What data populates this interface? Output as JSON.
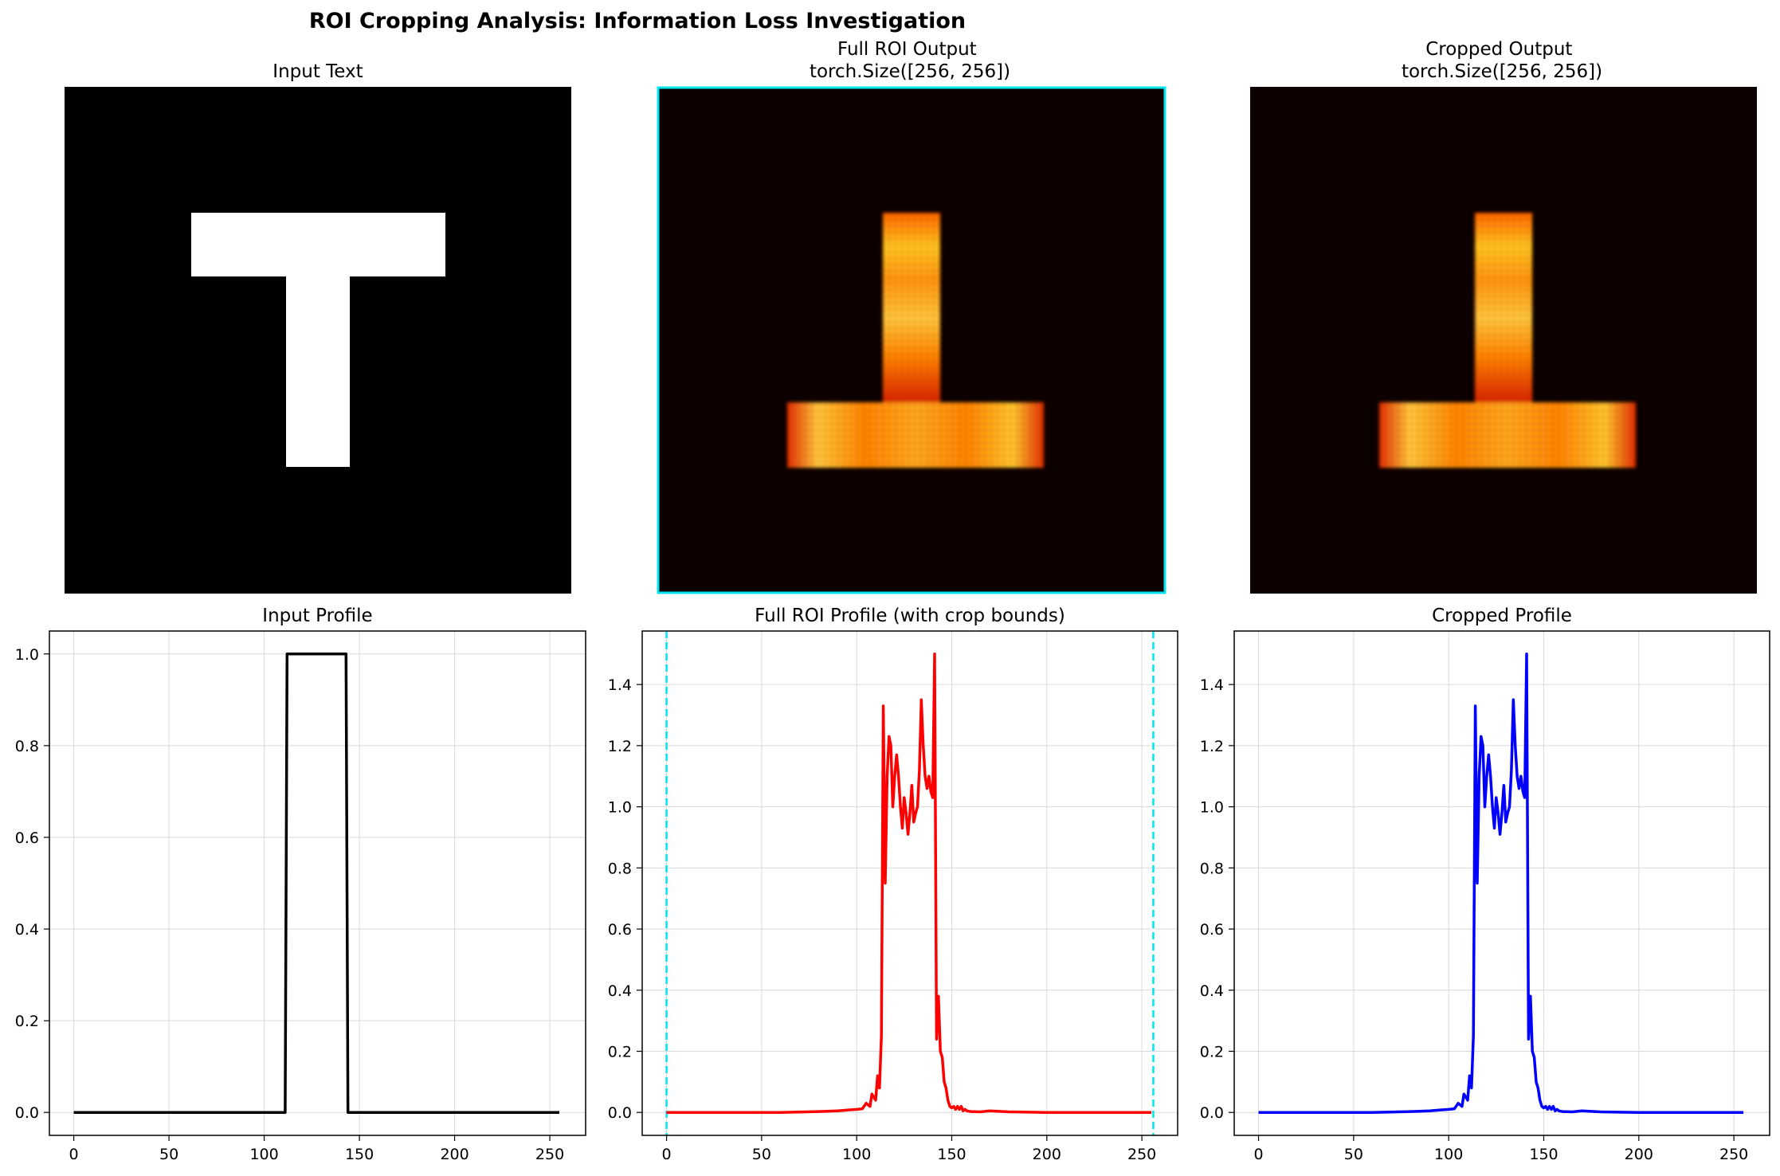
{
  "figure": {
    "title": "ROI Cropping Analysis: Information Loss Investigation"
  },
  "colors": {
    "input_line": "#000000",
    "full_line": "#ff0000",
    "crop_line": "#0000ff",
    "crop_bounds": "#00e5ee",
    "heat_background": "#0d0000",
    "grid": "#d9d9d9"
  },
  "images": [
    {
      "title": "Input Text",
      "colormap": "gray",
      "letter": "T"
    },
    {
      "title": "Full ROI Output\ntorch.Size([256, 256])",
      "colormap": "hot",
      "letter": "inverted-T",
      "frame": "cyan"
    },
    {
      "title": "Cropped Output\ntorch.Size([256, 256])",
      "colormap": "hot",
      "letter": "inverted-T"
    }
  ],
  "chart_data": [
    {
      "type": "line",
      "title": "Input Profile",
      "xlim": [
        -12.8,
        268.8
      ],
      "ylim": [
        -0.05,
        1.05
      ],
      "xticks": [
        0,
        50,
        100,
        150,
        200,
        250
      ],
      "yticks": [
        0.0,
        0.2,
        0.4,
        0.6,
        0.8,
        1.0
      ],
      "ytick_labels": [
        "0.0",
        "0.2",
        "0.4",
        "0.6",
        "0.8",
        "1.0"
      ],
      "grid": true,
      "series": [
        {
          "color": "black",
          "x": [
            0,
            111,
            112,
            143,
            144,
            255
          ],
          "y": [
            0,
            0,
            1,
            1,
            0,
            0
          ]
        }
      ]
    },
    {
      "type": "line",
      "title": "Full ROI Profile (with crop bounds)",
      "xlim": [
        -12.8,
        268.8
      ],
      "ylim": [
        -0.075,
        1.575
      ],
      "xticks": [
        0,
        50,
        100,
        150,
        200,
        250
      ],
      "yticks": [
        0.0,
        0.2,
        0.4,
        0.6,
        0.8,
        1.0,
        1.2,
        1.4
      ],
      "ytick_labels": [
        "0.0",
        "0.2",
        "0.4",
        "0.6",
        "0.8",
        "1.0",
        "1.2",
        "1.4"
      ],
      "grid": true,
      "vlines": [
        0,
        256
      ],
      "series": [
        {
          "color": "red",
          "x": [
            0,
            20,
            40,
            60,
            80,
            90,
            95,
            100,
            103,
            105,
            107,
            108,
            110,
            111,
            112,
            113,
            114,
            115,
            116,
            117,
            118,
            119,
            120,
            121,
            122,
            123,
            124,
            125,
            126,
            127,
            128,
            129,
            130,
            131,
            132,
            133,
            134,
            135,
            136,
            137,
            138,
            139,
            140,
            141,
            142,
            143,
            144,
            145,
            146,
            147,
            148,
            149,
            150,
            151,
            152,
            153,
            154,
            155,
            156,
            157,
            158,
            160,
            165,
            170,
            180,
            200,
            220,
            240,
            255
          ],
          "y": [
            0,
            0,
            0,
            0,
            0.003,
            0.005,
            0.008,
            0.01,
            0.012,
            0.03,
            0.02,
            0.06,
            0.04,
            0.12,
            0.08,
            0.25,
            1.33,
            0.75,
            1.1,
            1.23,
            1.2,
            1.0,
            1.1,
            1.17,
            1.1,
            1.0,
            0.93,
            1.03,
            0.98,
            0.91,
            0.98,
            1.07,
            0.95,
            0.98,
            1.0,
            1.12,
            1.35,
            1.2,
            1.1,
            1.06,
            1.1,
            1.05,
            1.03,
            1.5,
            0.24,
            0.38,
            0.2,
            0.18,
            0.1,
            0.08,
            0.04,
            0.02,
            0.015,
            0.02,
            0.01,
            0.02,
            0.01,
            0.02,
            0.005,
            0.01,
            0.005,
            0.003,
            0.002,
            0.005,
            0.002,
            0,
            0,
            0,
            0
          ]
        }
      ]
    },
    {
      "type": "line",
      "title": "Cropped Profile",
      "xlim": [
        -12.8,
        268.8
      ],
      "ylim": [
        -0.075,
        1.575
      ],
      "xticks": [
        0,
        50,
        100,
        150,
        200,
        250
      ],
      "yticks": [
        0.0,
        0.2,
        0.4,
        0.6,
        0.8,
        1.0,
        1.2,
        1.4
      ],
      "ytick_labels": [
        "0.0",
        "0.2",
        "0.4",
        "0.6",
        "0.8",
        "1.0",
        "1.2",
        "1.4"
      ],
      "grid": true,
      "series": [
        {
          "color": "blue",
          "x": [
            0,
            20,
            40,
            60,
            80,
            90,
            95,
            100,
            103,
            105,
            107,
            108,
            110,
            111,
            112,
            113,
            114,
            115,
            116,
            117,
            118,
            119,
            120,
            121,
            122,
            123,
            124,
            125,
            126,
            127,
            128,
            129,
            130,
            131,
            132,
            133,
            134,
            135,
            136,
            137,
            138,
            139,
            140,
            141,
            142,
            143,
            144,
            145,
            146,
            147,
            148,
            149,
            150,
            151,
            152,
            153,
            154,
            155,
            156,
            157,
            158,
            160,
            165,
            170,
            180,
            200,
            220,
            240,
            255
          ],
          "y": [
            0,
            0,
            0,
            0,
            0.003,
            0.005,
            0.008,
            0.01,
            0.012,
            0.03,
            0.02,
            0.06,
            0.04,
            0.12,
            0.08,
            0.25,
            1.33,
            0.75,
            1.1,
            1.23,
            1.2,
            1.0,
            1.1,
            1.17,
            1.1,
            1.0,
            0.93,
            1.03,
            0.98,
            0.91,
            0.98,
            1.07,
            0.95,
            0.98,
            1.0,
            1.12,
            1.35,
            1.2,
            1.1,
            1.06,
            1.1,
            1.05,
            1.03,
            1.5,
            0.24,
            0.38,
            0.2,
            0.18,
            0.1,
            0.08,
            0.04,
            0.02,
            0.015,
            0.02,
            0.01,
            0.02,
            0.01,
            0.02,
            0.005,
            0.01,
            0.005,
            0.003,
            0.002,
            0.005,
            0.002,
            0,
            0,
            0,
            0
          ]
        }
      ]
    }
  ]
}
